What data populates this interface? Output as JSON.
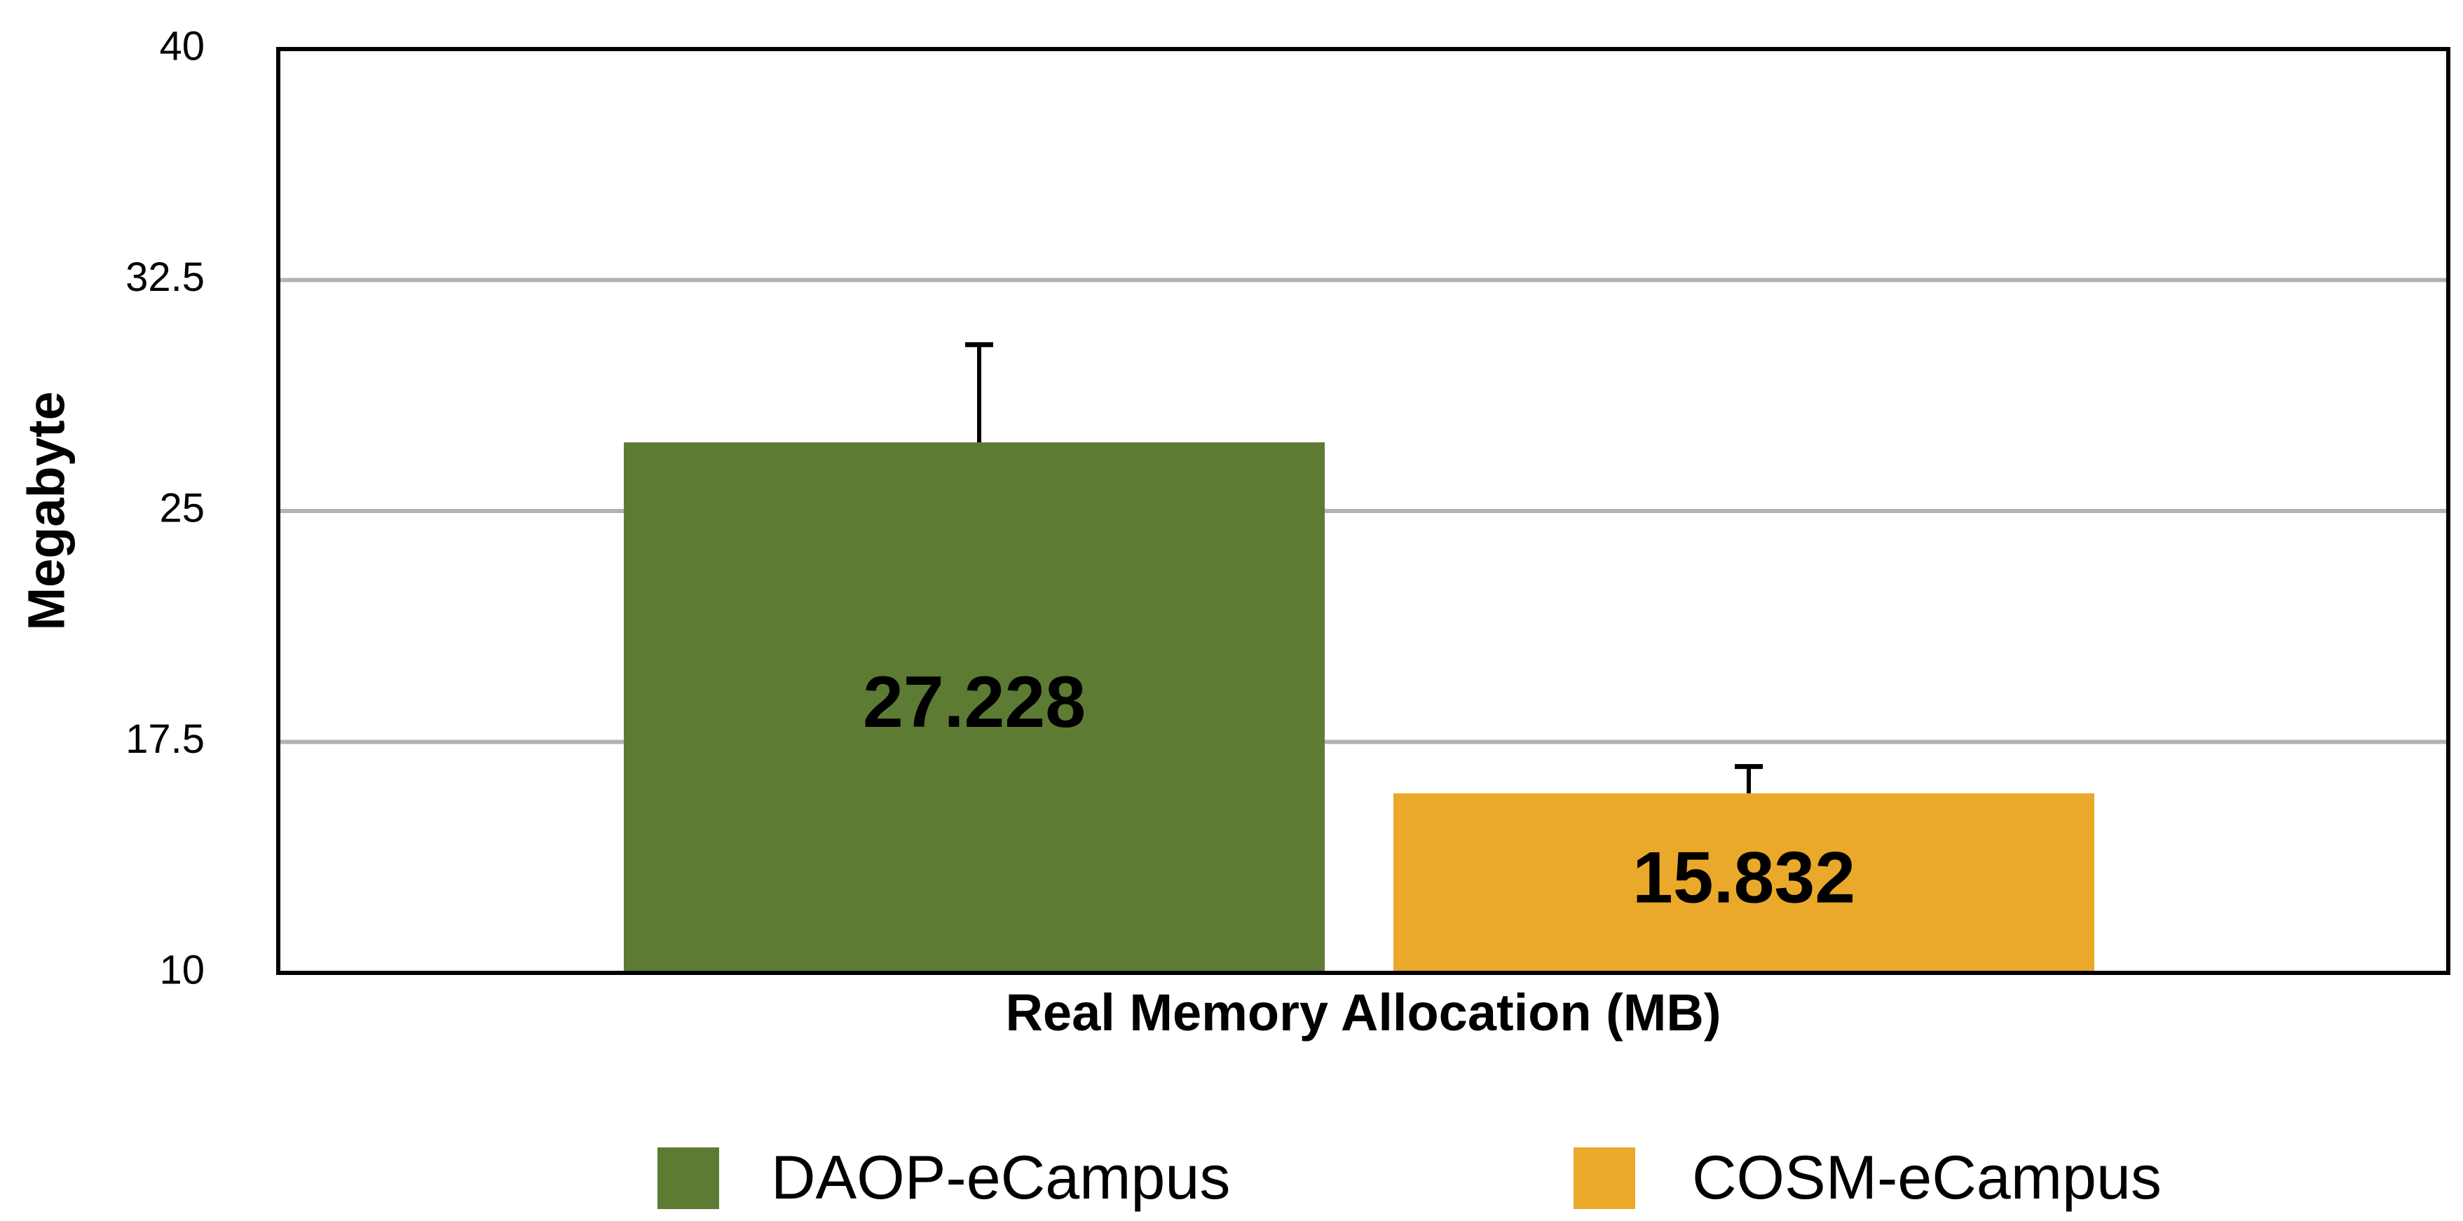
{
  "chart_data": {
    "type": "bar",
    "xlabel": "Real Memory Allocation (MB)",
    "ylabel": "Megabyte",
    "ylim": [
      10,
      40
    ],
    "yticks": [
      10,
      17.5,
      25,
      32.5,
      40
    ],
    "ytick_labels": [
      "10",
      "17.5",
      "25",
      "32.5",
      "40"
    ],
    "grid": true,
    "legend_position": "bottom",
    "series": [
      {
        "name": "DAOP-eCampus",
        "value": 27.228,
        "label": "27.228",
        "error_upper": 30.4,
        "color": "#5e7b34"
      },
      {
        "name": "COSM-eCampus",
        "value": 15.832,
        "label": "15.832",
        "error_upper": 16.7,
        "color": "#eaa92b"
      }
    ]
  }
}
